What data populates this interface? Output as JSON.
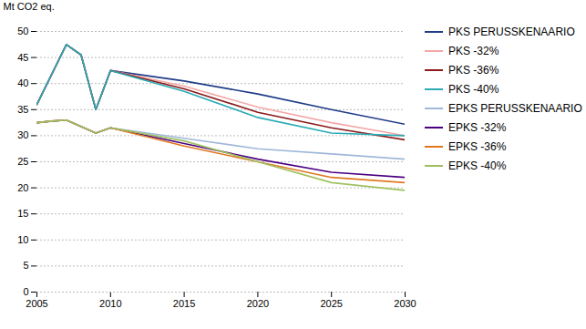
{
  "chart_data": {
    "type": "line",
    "ylabel": "Mt CO2 eq.",
    "xlim": [
      2005,
      2030
    ],
    "ylim": [
      0,
      50
    ],
    "xticks": [
      2005,
      2010,
      2015,
      2020,
      2025,
      2030
    ],
    "yticks": [
      0,
      5,
      10,
      15,
      20,
      25,
      30,
      35,
      40,
      45,
      50
    ],
    "grid": "y",
    "legend": "right",
    "series": [
      {
        "name": "PKS PERUSSKENAARIO",
        "color": "#1F3C88",
        "x": [
          2005,
          2007,
          2008,
          2009,
          2010,
          2015,
          2020,
          2025,
          2030
        ],
        "values": [
          36.0,
          47.5,
          45.5,
          35.0,
          42.5,
          40.5,
          38.0,
          35.0,
          32.2
        ]
      },
      {
        "name": "PKS -32%",
        "color": "#F4A8A8",
        "x": [
          2005,
          2007,
          2008,
          2009,
          2010,
          2015,
          2020,
          2025,
          2030
        ],
        "values": [
          36.0,
          47.5,
          45.5,
          35.0,
          42.5,
          39.5,
          35.5,
          32.5,
          30.0
        ]
      },
      {
        "name": "PKS -36%",
        "color": "#8B1A1A",
        "x": [
          2005,
          2007,
          2008,
          2009,
          2010,
          2015,
          2020,
          2025,
          2030
        ],
        "values": [
          36.0,
          47.5,
          45.5,
          35.0,
          42.5,
          39.0,
          34.5,
          31.5,
          29.2
        ]
      },
      {
        "name": "PKS -40%",
        "color": "#2AABB5",
        "x": [
          2005,
          2007,
          2008,
          2009,
          2010,
          2015,
          2020,
          2025,
          2030
        ],
        "values": [
          36.0,
          47.5,
          45.5,
          35.0,
          42.5,
          38.5,
          33.5,
          30.5,
          30.0
        ]
      },
      {
        "name": "EPKS PERUSSKENAARIO",
        "color": "#A0B8D8",
        "x": [
          2005,
          2006,
          2007,
          2009,
          2010,
          2015,
          2020,
          2025,
          2030
        ],
        "values": [
          32.5,
          32.8,
          33.0,
          30.5,
          31.5,
          29.5,
          27.5,
          26.5,
          25.5
        ]
      },
      {
        "name": "EPKS -32%",
        "color": "#4B0082",
        "x": [
          2005,
          2006,
          2007,
          2009,
          2010,
          2015,
          2020,
          2025,
          2030
        ],
        "values": [
          32.5,
          32.8,
          33.0,
          30.5,
          31.5,
          28.5,
          25.5,
          23.0,
          22.0
        ]
      },
      {
        "name": "EPKS -36%",
        "color": "#E07820",
        "x": [
          2005,
          2006,
          2007,
          2009,
          2010,
          2015,
          2020,
          2025,
          2030
        ],
        "values": [
          32.5,
          32.8,
          33.0,
          30.5,
          31.5,
          28.0,
          25.0,
          22.0,
          21.0
        ]
      },
      {
        "name": "EPKS -40%",
        "color": "#A0C060",
        "x": [
          2005,
          2006,
          2007,
          2009,
          2010,
          2015,
          2020,
          2025,
          2030
        ],
        "values": [
          32.5,
          32.8,
          33.0,
          30.5,
          31.5,
          29.0,
          25.0,
          21.0,
          19.5
        ]
      }
    ]
  }
}
